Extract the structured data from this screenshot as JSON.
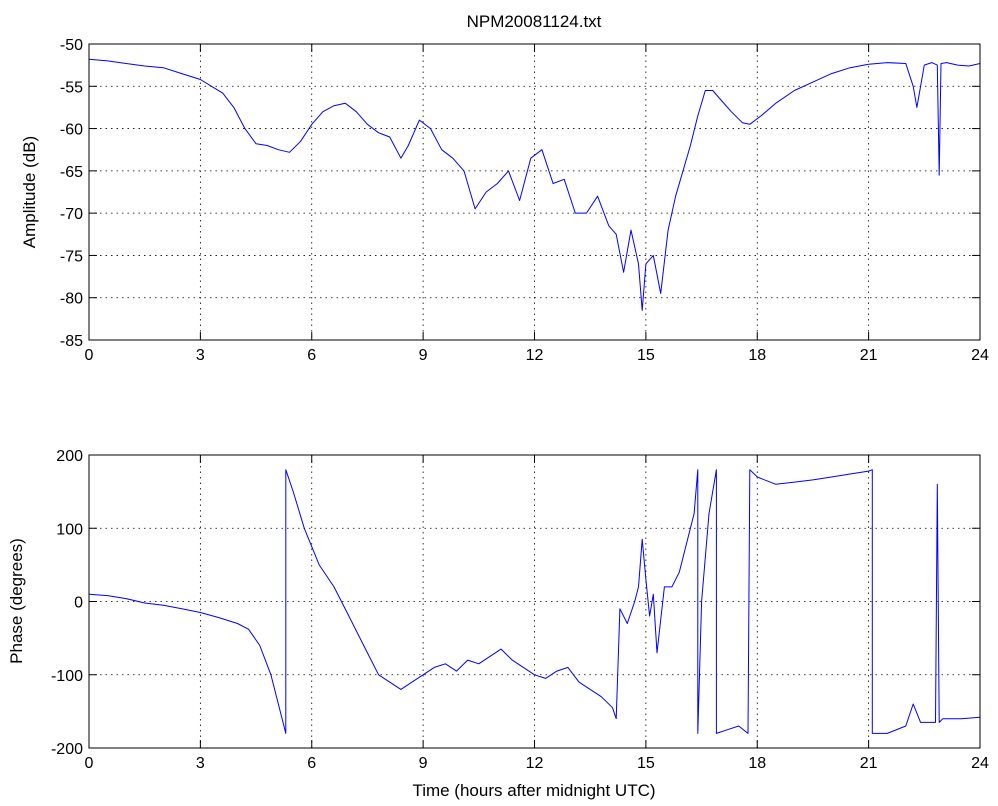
{
  "chart_data": [
    {
      "type": "line",
      "title": "NPM20081124.txt",
      "xlabel": "",
      "ylabel": "Amplitude (dB)",
      "xlim": [
        0,
        24
      ],
      "ylim": [
        -85,
        -50
      ],
      "xticks": [
        "0",
        "3",
        "6",
        "9",
        "12",
        "15",
        "18",
        "21",
        "24"
      ],
      "yticks": [
        "-50",
        "-55",
        "-60",
        "-65",
        "-70",
        "-75",
        "-80",
        "-85"
      ],
      "grid": true,
      "color": "#0000ff",
      "series": [
        {
          "x": [
            0,
            0.5,
            1,
            1.5,
            2,
            2.5,
            3,
            3.3,
            3.6,
            3.9,
            4.2,
            4.5,
            4.8,
            5.1,
            5.4,
            5.7,
            6,
            6.3,
            6.6,
            6.9,
            7.2,
            7.5,
            7.8,
            8.1,
            8.4,
            8.6,
            8.9,
            9.2,
            9.5,
            9.8,
            10.1,
            10.4,
            10.7,
            11,
            11.3,
            11.6,
            11.9,
            12.2,
            12.5,
            12.8,
            13.1,
            13.4,
            13.7,
            14,
            14.2,
            14.4,
            14.6,
            14.8,
            14.9,
            15,
            15.2,
            15.4,
            15.6,
            15.8,
            16,
            16.2,
            16.4,
            16.6,
            16.8,
            17,
            17.3,
            17.6,
            17.8,
            18.1,
            18.5,
            19,
            19.5,
            20,
            20.5,
            21,
            21.5,
            22,
            22.2,
            22.3,
            22.5,
            22.7,
            22.85,
            22.9,
            22.95,
            23.1,
            23.4,
            23.7,
            24
          ],
          "y": [
            -51.8,
            -52.0,
            -52.3,
            -52.6,
            -52.8,
            -53.5,
            -54.2,
            -55.0,
            -55.8,
            -57.5,
            -60.0,
            -61.8,
            -62.0,
            -62.5,
            -62.8,
            -61.5,
            -59.5,
            -58.0,
            -57.3,
            -57.0,
            -58.0,
            -59.5,
            -60.5,
            -61.0,
            -63.5,
            -62.0,
            -59.0,
            -60.0,
            -62.5,
            -63.5,
            -65.0,
            -69.5,
            -67.5,
            -66.5,
            -65.0,
            -68.5,
            -63.5,
            -62.5,
            -66.5,
            -66.0,
            -70.0,
            -70.0,
            -68.0,
            -71.5,
            -72.5,
            -77.0,
            -72.0,
            -76.0,
            -81.5,
            -76.0,
            -75.0,
            -79.5,
            -72.0,
            -68.0,
            -65.0,
            -62.0,
            -58.5,
            -55.5,
            -55.5,
            -56.5,
            -58.0,
            -59.3,
            -59.5,
            -58.5,
            -57.0,
            -55.5,
            -54.5,
            -53.5,
            -52.8,
            -52.4,
            -52.2,
            -52.3,
            -55.0,
            -57.5,
            -52.5,
            -52.2,
            -52.5,
            -65.5,
            -52.3,
            -52.2,
            -52.5,
            -52.6,
            -52.3
          ]
        }
      ]
    },
    {
      "type": "line",
      "title": "",
      "xlabel": "Time (hours after midnight UTC)",
      "ylabel": "Phase (degrees)",
      "xlim": [
        0,
        24
      ],
      "ylim": [
        -200,
        200
      ],
      "xticks": [
        "0",
        "3",
        "6",
        "9",
        "12",
        "15",
        "18",
        "21",
        "24"
      ],
      "yticks": [
        "200",
        "100",
        "0",
        "-100",
        "-200"
      ],
      "grid": true,
      "color": "#0000ff",
      "series": [
        {
          "x": [
            0,
            0.5,
            1,
            1.5,
            2,
            2.5,
            3,
            3.5,
            4,
            4.3,
            4.6,
            4.9,
            5.2,
            5.3,
            5.3,
            5.5,
            5.8,
            6.2,
            6.6,
            7,
            7.4,
            7.8,
            8.1,
            8.4,
            8.7,
            9,
            9.3,
            9.6,
            9.9,
            10.2,
            10.5,
            10.8,
            11.1,
            11.4,
            11.7,
            12,
            12.3,
            12.6,
            12.9,
            13.2,
            13.5,
            13.8,
            14.1,
            14.2,
            14.3,
            14.5,
            14.7,
            14.8,
            14.9,
            15,
            15.1,
            15.2,
            15.3,
            15.5,
            15.7,
            15.9,
            16.1,
            16.3,
            16.4,
            16.4,
            16.5,
            16.7,
            16.9,
            16.9,
            17.2,
            17.5,
            17.75,
            17.8,
            18,
            18.5,
            19,
            19.5,
            20,
            20.5,
            21,
            21.1,
            21.1,
            21.5,
            22,
            22.2,
            22.4,
            22.8,
            22.85,
            22.9,
            23,
            23.5,
            24
          ],
          "y": [
            10,
            8,
            4,
            -2,
            -5,
            -10,
            -15,
            -22,
            -30,
            -38,
            -60,
            -100,
            -160,
            -180,
            180,
            150,
            100,
            50,
            20,
            -20,
            -60,
            -100,
            -110,
            -120,
            -110,
            -100,
            -90,
            -85,
            -95,
            -80,
            -85,
            -75,
            -65,
            -80,
            -90,
            -100,
            -105,
            -95,
            -90,
            -110,
            -120,
            -130,
            -145,
            -160,
            -10,
            -30,
            0,
            20,
            85,
            30,
            -20,
            10,
            -70,
            20,
            20,
            40,
            80,
            120,
            180,
            -180,
            0,
            120,
            180,
            -180,
            -175,
            -170,
            -180,
            180,
            170,
            160,
            163,
            166,
            170,
            174,
            178,
            180,
            -180,
            -180,
            -170,
            -140,
            -165,
            -165,
            160,
            -165,
            -160,
            -160,
            -158
          ]
        }
      ]
    }
  ]
}
